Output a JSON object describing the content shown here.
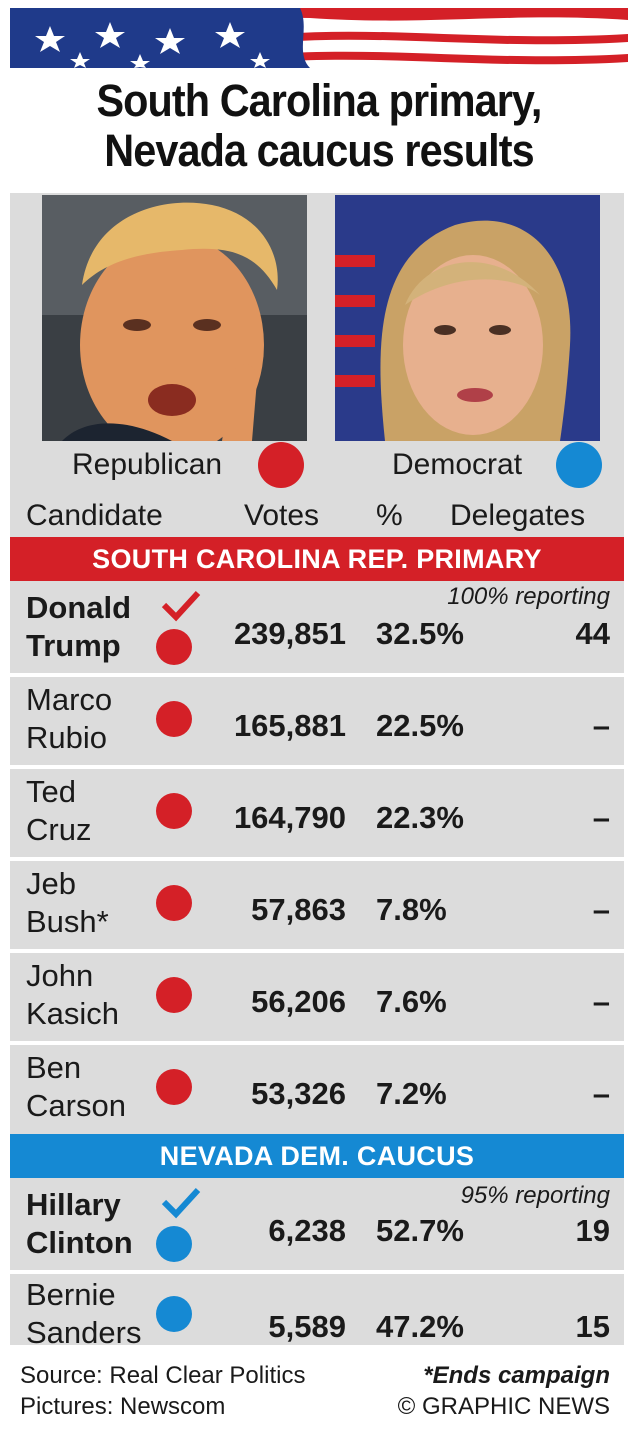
{
  "title_line1": "South Carolina primary,",
  "title_line2": "Nevada caucus results",
  "parties": {
    "republican": "Republican",
    "democrat": "Democrat"
  },
  "columns": {
    "candidate": "Candidate",
    "votes": "Votes",
    "pct": "%",
    "delegates": "Delegates"
  },
  "colors": {
    "republican": "#d42027",
    "democrat": "#1589d3",
    "panel": "#dcdcdc"
  },
  "sc": {
    "heading": "SOUTH CAROLINA REP. PRIMARY",
    "reporting": "100% reporting",
    "rows": [
      {
        "line1": "Donald",
        "line2": "Trump",
        "votes": "239,851",
        "pct": "32.5%",
        "delegates": "44",
        "winner": true
      },
      {
        "line1": "Marco",
        "line2": "Rubio",
        "votes": "165,881",
        "pct": "22.5%",
        "delegates": "–"
      },
      {
        "line1": "Ted",
        "line2": "Cruz",
        "votes": "164,790",
        "pct": "22.3%",
        "delegates": "–"
      },
      {
        "line1": "Jeb",
        "line2": "Bush*",
        "votes": "57,863",
        "pct": "7.8%",
        "delegates": "–"
      },
      {
        "line1": "John",
        "line2": "Kasich",
        "votes": "56,206",
        "pct": "7.6%",
        "delegates": "–"
      },
      {
        "line1": "Ben",
        "line2": "Carson",
        "votes": "53,326",
        "pct": "7.2%",
        "delegates": "–"
      }
    ]
  },
  "nv": {
    "heading": "NEVADA DEM. CAUCUS",
    "reporting": "95% reporting",
    "rows": [
      {
        "line1": "Hillary",
        "line2": "Clinton",
        "votes": "6,238",
        "pct": "52.7%",
        "delegates": "19",
        "winner": true
      },
      {
        "line1": "Bernie",
        "line2": "Sanders",
        "votes": "5,589",
        "pct": "47.2%",
        "delegates": "15"
      }
    ]
  },
  "footer": {
    "source": "Source: Real Clear Politics",
    "pictures": "Pictures: Newscom",
    "note": "*Ends campaign",
    "credit": "© GRAPHIC NEWS"
  }
}
